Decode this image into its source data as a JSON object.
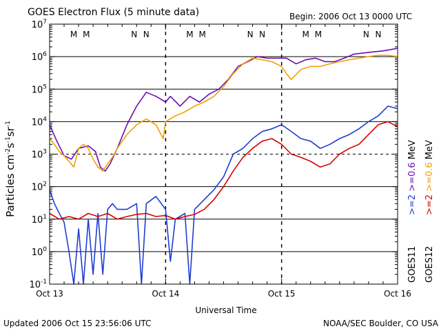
{
  "chart_data": {
    "type": "line",
    "title": "GOES Electron Flux (5 minute data)",
    "begin_label": "Begin: 2006 Oct 13 0000 UTC",
    "xlabel": "Universal Time",
    "ylabel_main": "Particles cm",
    "ylabel_exp1": "-2",
    "ylabel_mid1": "s",
    "ylabel_exp2": "-1",
    "ylabel_mid2": "sr",
    "ylabel_exp3": "-1",
    "x_ticks": [
      "Oct 13",
      "Oct 14",
      "Oct 15",
      "Oct 16"
    ],
    "xlim_hours": [
      0,
      72
    ],
    "ylim": [
      0.1,
      10000000
    ],
    "y_scale": "log",
    "y_tick_mantissa": "10",
    "y_tick_exponents": [
      "-1",
      "0",
      "1",
      "2",
      "3",
      "4",
      "5",
      "6",
      "7"
    ],
    "grid": "horizontal decades (solid), 10^3 dashed",
    "markers": [
      {
        "label": "M",
        "hour": 5.0,
        "color": "#d40000"
      },
      {
        "label": "M",
        "hour": 7.6,
        "color": "#1e3cd0"
      },
      {
        "label": "N",
        "hour": 17.5,
        "color": "#d40000"
      },
      {
        "label": "N",
        "hour": 20.0,
        "color": "#1e3cd0"
      },
      {
        "label": "M",
        "hour": 29.0,
        "color": "#d40000"
      },
      {
        "label": "M",
        "hour": 31.6,
        "color": "#1e3cd0"
      },
      {
        "label": "N",
        "hour": 41.5,
        "color": "#d40000"
      },
      {
        "label": "N",
        "hour": 44.0,
        "color": "#1e3cd0"
      },
      {
        "label": "M",
        "hour": 53.0,
        "color": "#d40000"
      },
      {
        "label": "M",
        "hour": 55.6,
        "color": "#1e3cd0"
      },
      {
        "label": "N",
        "hour": 65.5,
        "color": "#d40000"
      },
      {
        "label": "N",
        "hour": 68.0,
        "color": "#1e3cd0"
      }
    ],
    "legend": [
      {
        "text": ">=2",
        "color": "#1e3cd0"
      },
      {
        "text": ">=0.6",
        "color": "#6a0dad"
      },
      {
        "text": "MeV",
        "color": "#000000"
      },
      {
        "text": ">=2",
        "color": "#d40000"
      },
      {
        "text": ">=0.6",
        "color": "#f0a000"
      },
      {
        "text": "MeV",
        "color": "#000000"
      },
      {
        "text": "GOES11",
        "color": "#000000"
      },
      {
        "text": "GOES12",
        "color": "#000000"
      }
    ],
    "series": [
      {
        "color": "#6a0dad",
        "points": [
          [
            0,
            8000
          ],
          [
            1.5,
            2500
          ],
          [
            3,
            900
          ],
          [
            4.5,
            700
          ],
          [
            6,
            1500
          ],
          [
            8,
            1800
          ],
          [
            9.5,
            1200
          ],
          [
            10.5,
            400
          ],
          [
            11.5,
            300
          ],
          [
            12.5,
            500
          ],
          [
            14,
            1500
          ],
          [
            16,
            8000
          ],
          [
            18,
            30000
          ],
          [
            20,
            80000
          ],
          [
            22,
            60000
          ],
          [
            24,
            40000
          ],
          [
            25,
            60000
          ],
          [
            27,
            30000
          ],
          [
            29,
            60000
          ],
          [
            31,
            40000
          ],
          [
            33,
            70000
          ],
          [
            35,
            100000
          ],
          [
            37,
            200000
          ],
          [
            39,
            500000
          ],
          [
            41,
            700000
          ],
          [
            43,
            1000000
          ],
          [
            45,
            900000
          ],
          [
            47,
            900000
          ],
          [
            49,
            900000
          ],
          [
            51,
            600000
          ],
          [
            53,
            800000
          ],
          [
            55,
            900000
          ],
          [
            57,
            700000
          ],
          [
            59,
            700000
          ],
          [
            61,
            900000
          ],
          [
            63,
            1200000
          ],
          [
            65,
            1300000
          ],
          [
            67,
            1400000
          ],
          [
            69,
            1500000
          ],
          [
            71,
            1700000
          ],
          [
            72,
            1800000
          ]
        ]
      },
      {
        "color": "#f0a000",
        "points": [
          [
            0,
            3000
          ],
          [
            1,
            2000
          ],
          [
            2,
            1200
          ],
          [
            3,
            900
          ],
          [
            4,
            600
          ],
          [
            5,
            400
          ],
          [
            6,
            1500
          ],
          [
            7,
            2000
          ],
          [
            8,
            1500
          ],
          [
            9,
            700
          ],
          [
            10,
            400
          ],
          [
            11,
            300
          ],
          [
            12,
            500
          ],
          [
            13,
            800
          ],
          [
            14,
            1500
          ],
          [
            16,
            4000
          ],
          [
            18,
            8000
          ],
          [
            20,
            12000
          ],
          [
            22,
            8000
          ],
          [
            23.5,
            3000
          ],
          [
            24,
            10000
          ],
          [
            26,
            15000
          ],
          [
            28,
            20000
          ],
          [
            30,
            30000
          ],
          [
            32,
            40000
          ],
          [
            34,
            60000
          ],
          [
            36,
            120000
          ],
          [
            38,
            300000
          ],
          [
            40,
            600000
          ],
          [
            42,
            900000
          ],
          [
            44,
            800000
          ],
          [
            46,
            700000
          ],
          [
            48,
            500000
          ],
          [
            49,
            300000
          ],
          [
            50,
            200000
          ],
          [
            52,
            400000
          ],
          [
            54,
            500000
          ],
          [
            56,
            500000
          ],
          [
            58,
            600000
          ],
          [
            60,
            700000
          ],
          [
            62,
            800000
          ],
          [
            64,
            900000
          ],
          [
            66,
            1000000
          ],
          [
            68,
            1100000
          ],
          [
            70,
            1100000
          ],
          [
            72,
            1000000
          ]
        ]
      },
      {
        "color": "#1e3cd0",
        "points": [
          [
            0,
            80
          ],
          [
            1,
            30
          ],
          [
            2,
            15
          ],
          [
            3,
            8
          ],
          [
            4,
            1
          ],
          [
            5,
            0.1
          ],
          [
            6,
            5
          ],
          [
            7,
            0.1
          ],
          [
            8,
            10
          ],
          [
            9,
            0.2
          ],
          [
            10,
            15
          ],
          [
            11,
            0.2
          ],
          [
            12,
            20
          ],
          [
            13,
            30
          ],
          [
            14,
            20
          ],
          [
            16,
            20
          ],
          [
            18,
            30
          ],
          [
            19,
            0.1
          ],
          [
            20,
            30
          ],
          [
            22,
            50
          ],
          [
            24,
            20
          ],
          [
            25,
            0.5
          ],
          [
            26,
            10
          ],
          [
            28,
            15
          ],
          [
            29,
            0.1
          ],
          [
            30,
            20
          ],
          [
            32,
            40
          ],
          [
            34,
            80
          ],
          [
            36,
            200
          ],
          [
            38,
            1000
          ],
          [
            40,
            1500
          ],
          [
            42,
            3000
          ],
          [
            44,
            5000
          ],
          [
            46,
            6000
          ],
          [
            48,
            8000
          ],
          [
            50,
            5000
          ],
          [
            52,
            3000
          ],
          [
            54,
            2500
          ],
          [
            56,
            1500
          ],
          [
            58,
            2000
          ],
          [
            60,
            3000
          ],
          [
            62,
            4000
          ],
          [
            64,
            6000
          ],
          [
            66,
            10000
          ],
          [
            68,
            15000
          ],
          [
            70,
            30000
          ],
          [
            72,
            25000
          ]
        ]
      },
      {
        "color": "#d40000",
        "points": [
          [
            0,
            15
          ],
          [
            2,
            10
          ],
          [
            4,
            12
          ],
          [
            6,
            10
          ],
          [
            8,
            15
          ],
          [
            10,
            12
          ],
          [
            12,
            15
          ],
          [
            14,
            10
          ],
          [
            16,
            12
          ],
          [
            18,
            14
          ],
          [
            20,
            15
          ],
          [
            22,
            12
          ],
          [
            24,
            13
          ],
          [
            26,
            10
          ],
          [
            28,
            12
          ],
          [
            30,
            14
          ],
          [
            32,
            20
          ],
          [
            34,
            40
          ],
          [
            36,
            100
          ],
          [
            38,
            300
          ],
          [
            40,
            800
          ],
          [
            42,
            1500
          ],
          [
            44,
            2500
          ],
          [
            46,
            3000
          ],
          [
            48,
            2000
          ],
          [
            50,
            1000
          ],
          [
            52,
            800
          ],
          [
            54,
            600
          ],
          [
            56,
            400
          ],
          [
            58,
            500
          ],
          [
            60,
            1000
          ],
          [
            62,
            1500
          ],
          [
            64,
            2000
          ],
          [
            66,
            4000
          ],
          [
            68,
            8000
          ],
          [
            70,
            10000
          ],
          [
            72,
            7000
          ]
        ]
      }
    ]
  },
  "footer": {
    "updated": "Updated 2006 Oct 15 23:56:06 UTC",
    "source": "NOAA/SEC Boulder, CO USA"
  }
}
